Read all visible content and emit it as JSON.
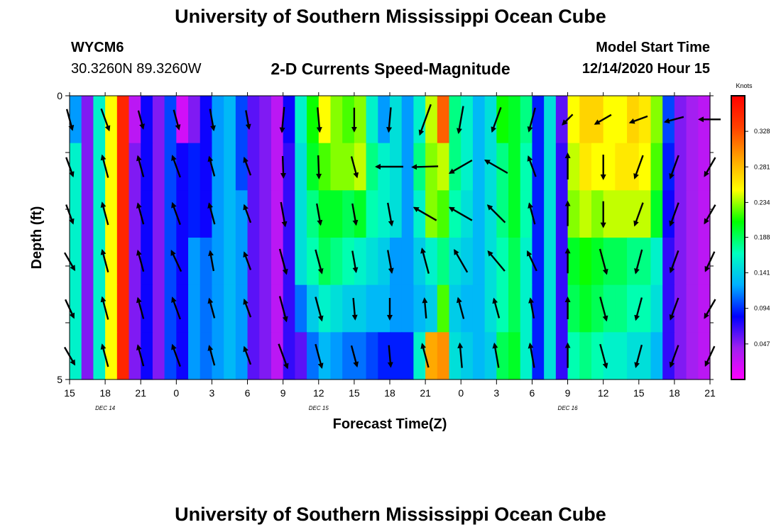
{
  "header": {
    "title": "University of Southern Mississippi Ocean Cube",
    "station": "WYCM6",
    "coords": "30.3260N 89.3260W",
    "subtitle": "2-D Currents Speed-Magnitude",
    "start_label": "Model Start Time",
    "start_value": "12/14/2020 Hour 15"
  },
  "footer": {
    "title": "University of Southern Mississippi Ocean Cube"
  },
  "chart_data": {
    "type": "heatmap",
    "title": "2-D Currents Speed-Magnitude",
    "xlabel": "Forecast Time(Z)",
    "ylabel": "Depth (ft)",
    "x_tick_labels": [
      "15",
      "18",
      "21",
      "0",
      "3",
      "6",
      "9",
      "12",
      "15",
      "18",
      "21",
      "0",
      "3",
      "6",
      "9",
      "12",
      "15",
      "18",
      "21"
    ],
    "date_labels": [
      {
        "label": "DEC 14",
        "tick_index": 1
      },
      {
        "label": "DEC 15",
        "tick_index": 7
      },
      {
        "label": "DEC 16",
        "tick_index": 14
      }
    ],
    "y_tick_labels": [
      {
        "label": "0",
        "depth": 0
      },
      {
        "label": "5",
        "depth": 5
      }
    ],
    "ylim": [
      0,
      5
    ],
    "xlim_hours": [
      0,
      54
    ],
    "colorbar": {
      "unit_label": "Knots",
      "range": [
        0.0,
        0.375
      ],
      "ticks": [
        "0.047",
        "0.094",
        "0.141",
        "0.188",
        "0.234",
        "0.281",
        "0.328"
      ],
      "colors": [
        "#ff00ff",
        "#a020f0",
        "#0000ff",
        "#00b0ff",
        "#00ffc0",
        "#00ff00",
        "#ffff00",
        "#ffa500",
        "#ff4000",
        "#ff0000"
      ]
    },
    "depth_rows": 6,
    "time_hours": [
      0,
      1,
      2,
      3,
      4,
      5,
      6,
      7,
      8,
      9,
      10,
      11,
      12,
      13,
      14,
      15,
      16,
      17,
      18,
      19,
      20,
      21,
      22,
      23,
      24,
      25,
      26,
      27,
      28,
      29,
      30,
      31,
      32,
      33,
      34,
      35,
      36,
      37,
      38,
      39,
      40,
      41,
      42,
      43,
      44,
      45,
      46,
      47,
      48,
      49,
      50,
      51,
      52,
      53
    ],
    "speed_knots": [
      [
        0.12,
        0.05,
        0.16,
        0.25,
        0.35,
        0.03,
        0.08,
        0.05,
        0.1,
        0.02,
        0.05,
        0.08,
        0.12,
        0.13,
        0.1,
        0.06,
        0.05,
        0.03,
        0.08,
        0.16,
        0.21,
        0.25,
        0.23,
        0.22,
        0.23,
        0.16,
        0.12,
        0.15,
        0.12,
        0.16,
        0.24,
        0.32,
        0.18,
        0.16,
        0.13,
        0.15,
        0.21,
        0.2,
        0.18,
        0.09,
        0.15,
        0.06,
        0.25,
        0.27,
        0.27,
        0.25,
        0.25,
        0.27,
        0.26,
        0.23,
        0.1,
        0.05,
        0.04,
        0.03
      ],
      [
        0.16,
        0.05,
        0.16,
        0.25,
        0.35,
        0.05,
        0.08,
        0.05,
        0.1,
        0.08,
        0.09,
        0.08,
        0.12,
        0.13,
        0.1,
        0.06,
        0.05,
        0.03,
        0.07,
        0.15,
        0.2,
        0.22,
        0.23,
        0.23,
        0.24,
        0.18,
        0.16,
        0.15,
        0.12,
        0.18,
        0.23,
        0.24,
        0.18,
        0.16,
        0.13,
        0.15,
        0.18,
        0.2,
        0.17,
        0.09,
        0.15,
        0.07,
        0.24,
        0.26,
        0.25,
        0.25,
        0.26,
        0.26,
        0.25,
        0.22,
        0.09,
        0.05,
        0.04,
        0.03
      ],
      [
        0.16,
        0.05,
        0.16,
        0.25,
        0.35,
        0.05,
        0.08,
        0.05,
        0.1,
        0.08,
        0.09,
        0.08,
        0.12,
        0.13,
        0.12,
        0.06,
        0.05,
        0.03,
        0.07,
        0.15,
        0.18,
        0.2,
        0.2,
        0.19,
        0.2,
        0.17,
        0.16,
        0.15,
        0.12,
        0.16,
        0.23,
        0.22,
        0.17,
        0.15,
        0.13,
        0.15,
        0.18,
        0.2,
        0.17,
        0.09,
        0.15,
        0.07,
        0.23,
        0.24,
        0.23,
        0.24,
        0.24,
        0.24,
        0.24,
        0.2,
        0.08,
        0.05,
        0.04,
        0.03
      ],
      [
        0.16,
        0.05,
        0.16,
        0.25,
        0.35,
        0.05,
        0.08,
        0.05,
        0.1,
        0.08,
        0.12,
        0.11,
        0.12,
        0.13,
        0.12,
        0.06,
        0.05,
        0.03,
        0.07,
        0.15,
        0.17,
        0.19,
        0.18,
        0.17,
        0.16,
        0.15,
        0.14,
        0.12,
        0.12,
        0.14,
        0.16,
        0.18,
        0.15,
        0.14,
        0.13,
        0.15,
        0.17,
        0.19,
        0.16,
        0.09,
        0.15,
        0.07,
        0.2,
        0.21,
        0.2,
        0.19,
        0.19,
        0.18,
        0.18,
        0.16,
        0.07,
        0.05,
        0.04,
        0.03
      ],
      [
        0.16,
        0.05,
        0.16,
        0.25,
        0.35,
        0.05,
        0.08,
        0.05,
        0.1,
        0.08,
        0.12,
        0.11,
        0.12,
        0.13,
        0.12,
        0.06,
        0.05,
        0.03,
        0.07,
        0.11,
        0.14,
        0.16,
        0.15,
        0.14,
        0.14,
        0.13,
        0.13,
        0.12,
        0.12,
        0.13,
        0.14,
        0.22,
        0.14,
        0.13,
        0.13,
        0.15,
        0.17,
        0.19,
        0.16,
        0.09,
        0.15,
        0.07,
        0.19,
        0.2,
        0.19,
        0.18,
        0.18,
        0.17,
        0.17,
        0.15,
        0.07,
        0.05,
        0.04,
        0.03
      ],
      [
        0.16,
        0.05,
        0.16,
        0.25,
        0.35,
        0.05,
        0.08,
        0.05,
        0.1,
        0.08,
        0.12,
        0.11,
        0.12,
        0.13,
        0.12,
        0.06,
        0.05,
        0.03,
        0.07,
        0.06,
        0.11,
        0.13,
        0.12,
        0.11,
        0.11,
        0.1,
        0.09,
        0.09,
        0.09,
        0.16,
        0.29,
        0.3,
        0.15,
        0.14,
        0.13,
        0.14,
        0.19,
        0.2,
        0.16,
        0.09,
        0.15,
        0.07,
        0.17,
        0.18,
        0.17,
        0.16,
        0.16,
        0.15,
        0.15,
        0.13,
        0.07,
        0.05,
        0.04,
        0.03
      ]
    ],
    "arrow_columns_hours": [
      0,
      3,
      6,
      9,
      12,
      15,
      18,
      21,
      24,
      27,
      30,
      33,
      36,
      39,
      42,
      45,
      48,
      51,
      54
    ],
    "arrow_direction_deg": [
      [
        165,
        160,
        165,
        165,
        170,
        170,
        185,
        175,
        180,
        185,
        200,
        190,
        200,
        195,
        225,
        240,
        250,
        255,
        270
      ],
      [
        160,
        345,
        345,
        340,
        345,
        340,
        178,
        178,
        165,
        270,
        268,
        240,
        300,
        340,
        0,
        180,
        200,
        200,
        210
      ],
      [
        160,
        345,
        345,
        340,
        345,
        340,
        170,
        170,
        170,
        170,
        300,
        300,
        315,
        345,
        0,
        180,
        200,
        200,
        210
      ],
      [
        150,
        345,
        345,
        335,
        350,
        340,
        165,
        165,
        170,
        170,
        345,
        330,
        320,
        335,
        0,
        165,
        195,
        200,
        205
      ],
      [
        155,
        345,
        345,
        340,
        345,
        340,
        165,
        165,
        175,
        180,
        355,
        345,
        345,
        350,
        0,
        165,
        195,
        200,
        210
      ],
      [
        150,
        345,
        345,
        340,
        345,
        340,
        160,
        165,
        165,
        175,
        345,
        355,
        350,
        350,
        0,
        165,
        195,
        200,
        205
      ]
    ],
    "arrow_length": [
      [
        0.3,
        0.32,
        0.26,
        0.28,
        0.3,
        0.26,
        0.35,
        0.34,
        0.33,
        0.34,
        0.45,
        0.38,
        0.36,
        0.34,
        0.2,
        0.26,
        0.26,
        0.27,
        0.3
      ],
      [
        0.28,
        0.32,
        0.3,
        0.32,
        0.28,
        0.26,
        0.3,
        0.32,
        0.3,
        0.38,
        0.36,
        0.36,
        0.36,
        0.3,
        0.36,
        0.34,
        0.34,
        0.34,
        0.3
      ],
      [
        0.28,
        0.32,
        0.3,
        0.32,
        0.3,
        0.26,
        0.34,
        0.3,
        0.3,
        0.32,
        0.36,
        0.36,
        0.34,
        0.3,
        0.34,
        0.36,
        0.34,
        0.34,
        0.3
      ],
      [
        0.28,
        0.32,
        0.3,
        0.32,
        0.28,
        0.26,
        0.36,
        0.34,
        0.3,
        0.32,
        0.36,
        0.36,
        0.36,
        0.3,
        0.34,
        0.36,
        0.34,
        0.32,
        0.3
      ],
      [
        0.28,
        0.32,
        0.3,
        0.32,
        0.28,
        0.26,
        0.36,
        0.34,
        0.3,
        0.3,
        0.28,
        0.3,
        0.28,
        0.28,
        0.3,
        0.34,
        0.32,
        0.32,
        0.3
      ],
      [
        0.28,
        0.32,
        0.3,
        0.32,
        0.28,
        0.26,
        0.36,
        0.34,
        0.3,
        0.3,
        0.34,
        0.34,
        0.34,
        0.34,
        0.34,
        0.34,
        0.32,
        0.32,
        0.3
      ]
    ]
  }
}
